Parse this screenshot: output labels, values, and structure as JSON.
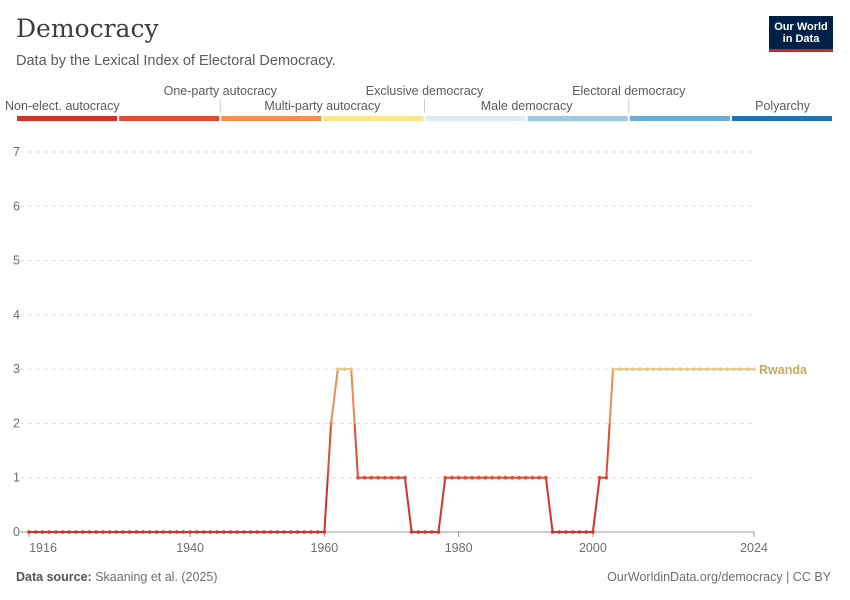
{
  "header": {
    "title": "Democracy",
    "subtitle": "Data by the Lexical Index of Electoral Democracy."
  },
  "logo": {
    "line1": "Our World",
    "line2": "in Data"
  },
  "footer": {
    "source_label": "Data source:",
    "source_text": "Skaaning et al. (2025)",
    "right_text": "OurWorldinData.org/democracy | CC BY"
  },
  "colors": {
    "scale": [
      "#d73027",
      "#e34a33",
      "#f78e4d",
      "#fee391",
      "#deebf7",
      "#9ecae1",
      "#6baed6",
      "#2171b5"
    ],
    "line_label": "#c9a85c",
    "grid": "#dddddd"
  },
  "chart_data": {
    "type": "line",
    "title": "Democracy",
    "subtitle": "Data by the Lexical Index of Electoral Democracy.",
    "ylim": [
      0,
      7
    ],
    "xlim": [
      1916,
      2024
    ],
    "y_ticks": [
      0,
      1,
      2,
      3,
      4,
      5,
      6,
      7
    ],
    "x_ticks": [
      1916,
      1940,
      1960,
      1980,
      2000,
      2024
    ],
    "grid": true,
    "legend": {
      "type": "categorical color scale",
      "placement": "top",
      "items": [
        "Non-elect. autocracy",
        "One-party autocracy",
        "Multi-party autocracy",
        "Exclusive democracy",
        "Male democracy",
        "Electoral democracy",
        "Polyarchy"
      ]
    },
    "series": [
      {
        "name": "Rwanda",
        "x": [
          1916,
          1917,
          1918,
          1919,
          1920,
          1921,
          1922,
          1923,
          1924,
          1925,
          1926,
          1927,
          1928,
          1929,
          1930,
          1931,
          1932,
          1933,
          1934,
          1935,
          1936,
          1937,
          1938,
          1939,
          1940,
          1941,
          1942,
          1943,
          1944,
          1945,
          1946,
          1947,
          1948,
          1949,
          1950,
          1951,
          1952,
          1953,
          1954,
          1955,
          1956,
          1957,
          1958,
          1959,
          1960,
          1961,
          1962,
          1963,
          1964,
          1965,
          1966,
          1967,
          1968,
          1969,
          1970,
          1971,
          1972,
          1973,
          1974,
          1975,
          1976,
          1977,
          1978,
          1979,
          1980,
          1981,
          1982,
          1983,
          1984,
          1985,
          1986,
          1987,
          1988,
          1989,
          1990,
          1991,
          1992,
          1993,
          1994,
          1995,
          1996,
          1997,
          1998,
          1999,
          2000,
          2001,
          2002,
          2003,
          2004,
          2005,
          2006,
          2007,
          2008,
          2009,
          2010,
          2011,
          2012,
          2013,
          2014,
          2015,
          2016,
          2017,
          2018,
          2019,
          2020,
          2021,
          2022,
          2023,
          2024
        ],
        "values": [
          0,
          0,
          0,
          0,
          0,
          0,
          0,
          0,
          0,
          0,
          0,
          0,
          0,
          0,
          0,
          0,
          0,
          0,
          0,
          0,
          0,
          0,
          0,
          0,
          0,
          0,
          0,
          0,
          0,
          0,
          0,
          0,
          0,
          0,
          0,
          0,
          0,
          0,
          0,
          0,
          0,
          0,
          0,
          0,
          0,
          2,
          3,
          3,
          3,
          1,
          1,
          1,
          1,
          1,
          1,
          1,
          1,
          0,
          0,
          0,
          0,
          0,
          1,
          1,
          1,
          1,
          1,
          1,
          1,
          1,
          1,
          1,
          1,
          1,
          1,
          1,
          1,
          1,
          0,
          0,
          0,
          0,
          0,
          0,
          0,
          1,
          1,
          3,
          3,
          3,
          3,
          3,
          3,
          3,
          3,
          3,
          3,
          3,
          3,
          3,
          3,
          3,
          3,
          3,
          3,
          3,
          3,
          3,
          3
        ]
      }
    ]
  }
}
